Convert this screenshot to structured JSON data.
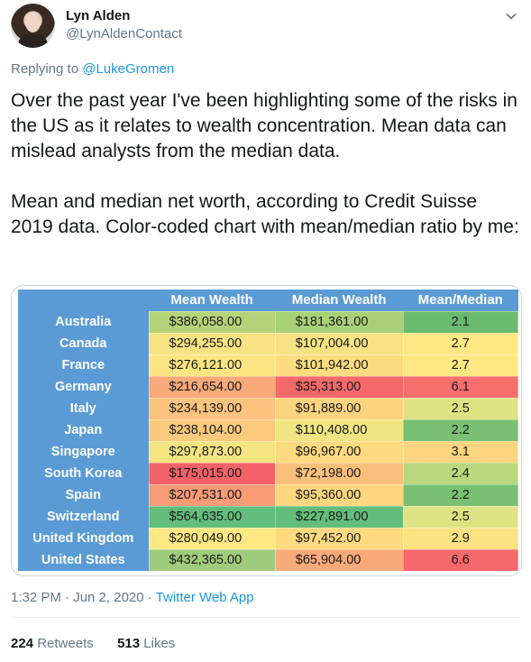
{
  "user": {
    "name": "Lyn Alden",
    "handle": "@LynAldenContact"
  },
  "reply": {
    "prefix": "Replying to",
    "target": "@LukeGromen"
  },
  "tweet_text": "Over the past year I've been highlighting some of the risks in the US as it relates to wealth concentration. Mean data can mislead analysts from the median data.\n\nMean and median net worth, according to Credit Suisse 2019 data. Color-coded chart with mean/median ratio by me:",
  "table": {
    "headers": [
      "",
      "Mean Wealth",
      "Median Wealth",
      "Mean/Median"
    ],
    "rows": [
      {
        "country": "Australia",
        "mean": "$386,058.00",
        "median": "$181,361.00",
        "ratio": "2.1",
        "mean_color": "#b5d47a",
        "median_color": "#a9d077",
        "ratio_color": "#6abb6f"
      },
      {
        "country": "Canada",
        "mean": "$294,255.00",
        "median": "$107,004.00",
        "ratio": "2.7",
        "mean_color": "#f7e383",
        "median_color": "#f7e383",
        "ratio_color": "#fde883"
      },
      {
        "country": "France",
        "mean": "$276,121.00",
        "median": "$101,942.00",
        "ratio": "2.7",
        "mean_color": "#fbe582",
        "median_color": "#fcdc81",
        "ratio_color": "#fde883"
      },
      {
        "country": "Germany",
        "mean": "$216,654.00",
        "median": "$35,313.00",
        "ratio": "6.1",
        "mean_color": "#f9a97a",
        "median_color": "#f5696b",
        "ratio_color": "#f66f6c"
      },
      {
        "country": "Italy",
        "mean": "$234,139.00",
        "median": "$91,889.00",
        "ratio": "2.5",
        "mean_color": "#fbc37d",
        "median_color": "#fcd47f",
        "ratio_color": "#dee283"
      },
      {
        "country": "Japan",
        "mean": "$238,104.00",
        "median": "$110,408.00",
        "ratio": "2.2",
        "mean_color": "#fcca7e",
        "median_color": "#f1e583",
        "ratio_color": "#7ac073"
      },
      {
        "country": "Singapore",
        "mean": "$297,873.00",
        "median": "$96,967.00",
        "ratio": "3.1",
        "mean_color": "#f4e482",
        "median_color": "#fdd980",
        "ratio_color": "#fdd47f"
      },
      {
        "country": "South Korea",
        "mean": "$175,015.00",
        "median": "$72,198.00",
        "ratio": "2.4",
        "mean_color": "#f46269",
        "median_color": "#fbbf7c",
        "ratio_color": "#b9d77c"
      },
      {
        "country": "Spain",
        "mean": "$207,531.00",
        "median": "$95,360.00",
        "ratio": "2.2",
        "mean_color": "#f99b77",
        "median_color": "#fdd67f",
        "ratio_color": "#7ac073"
      },
      {
        "country": "Switzerland",
        "mean": "$564,635.00",
        "median": "$227,891.00",
        "ratio": "2.5",
        "mean_color": "#63be7b",
        "median_color": "#63be7b",
        "ratio_color": "#dee283"
      },
      {
        "country": "United Kingdom",
        "mean": "$280,049.00",
        "median": "$97,452.00",
        "ratio": "2.9",
        "mean_color": "#fde883",
        "median_color": "#fdd97f",
        "ratio_color": "#fde282"
      },
      {
        "country": "United States",
        "mean": "$432,365.00",
        "median": "$65,904.00",
        "ratio": "6.6",
        "mean_color": "#9fcc7c",
        "median_color": "#faaa79",
        "ratio_color": "#f8696b"
      }
    ]
  },
  "meta": {
    "time": "1:32 PM · Jun 2, 2020 · ",
    "source": "Twitter Web App"
  },
  "stats": {
    "retweets_count": "224",
    "retweets_label": "Retweets",
    "likes_count": "513",
    "likes_label": "Likes"
  },
  "colors": {
    "link": "#1b95e0",
    "secondary_text": "#657786",
    "table_header": "#5b9bd5"
  },
  "icons": {
    "menu": "chevron-down-icon"
  }
}
